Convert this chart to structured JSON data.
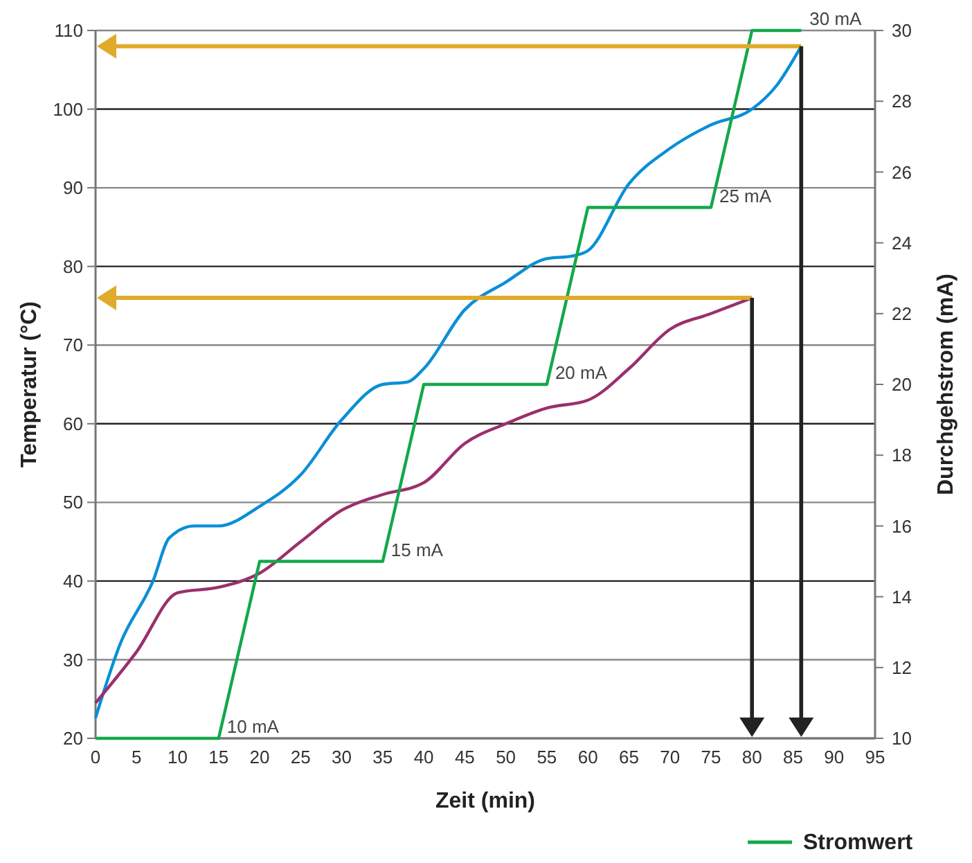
{
  "chart_data": {
    "type": "line",
    "xlabel": "Zeit (min)",
    "ylabel": "Temperatur (°C)",
    "y2label": "Durchgehstrom (mA)",
    "xlim": [
      0,
      95
    ],
    "xticks": [
      0,
      5,
      10,
      15,
      20,
      25,
      30,
      35,
      40,
      45,
      50,
      55,
      60,
      65,
      70,
      75,
      80,
      85,
      90,
      95
    ],
    "ylim": [
      20,
      110
    ],
    "yticks": [
      20,
      30,
      40,
      50,
      60,
      70,
      80,
      90,
      100,
      110
    ],
    "y2lim": [
      10,
      30
    ],
    "y2ticks": [
      10,
      12,
      14,
      16,
      18,
      20,
      22,
      24,
      26,
      28,
      30
    ],
    "grid": "y",
    "legend": "bottom",
    "line_style": "solid",
    "series": [
      {
        "color": "#0a8fd6",
        "x": [
          0,
          3,
          7,
          9,
          12,
          15,
          20,
          25,
          30,
          35,
          38,
          40,
          45,
          50,
          55,
          58,
          60,
          65,
          70,
          75,
          80,
          83,
          86
        ],
        "values": [
          22.6,
          32,
          40,
          45.5,
          47,
          47,
          49.5,
          53.5,
          60.5,
          65,
          65.3,
          67,
          74.5,
          78,
          81,
          81.3,
          82,
          90.5,
          95,
          98,
          100,
          103,
          108
        ]
      },
      {
        "color": "#9b2f6b",
        "x": [
          0,
          5,
          10,
          15,
          20,
          25,
          30,
          35,
          40,
          45,
          50,
          55,
          60,
          65,
          70,
          75,
          80
        ],
        "values": [
          24.5,
          31,
          38.5,
          39.2,
          41,
          45,
          49,
          51,
          52.5,
          57.5,
          60,
          62,
          63,
          67,
          72,
          74,
          76
        ]
      },
      {
        "name": "Stromwert",
        "color": "#12a84b",
        "axis": "y2",
        "x": [
          0,
          15,
          20,
          35,
          40,
          55,
          60,
          75,
          80,
          86
        ],
        "values": [
          10,
          10,
          15,
          15,
          20,
          20,
          25,
          25,
          30,
          30
        ]
      }
    ],
    "annotations": [
      {
        "text": "10 mA",
        "x": 15,
        "y": 20
      },
      {
        "text": "15   mA",
        "x": 35,
        "y": 42.5
      },
      {
        "text": "20 mA",
        "x": 55,
        "y": 65
      },
      {
        "text": "25 mA",
        "x": 75,
        "y": 87.5
      },
      {
        "text": "30 mA",
        "x": 86,
        "y": 110
      }
    ]
  }
}
